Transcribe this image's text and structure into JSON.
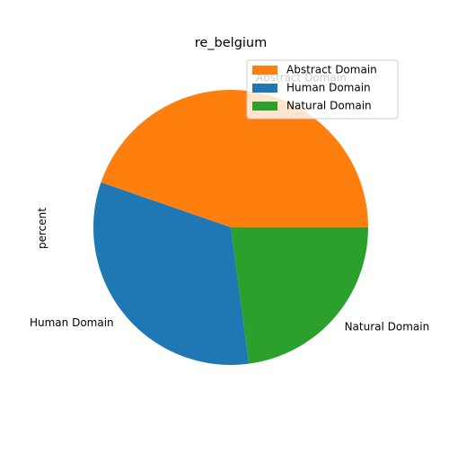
{
  "chart_data": {
    "type": "pie",
    "title": "re_belgium",
    "ylabel": "percent",
    "categories": [
      "Abstract Domain",
      "Human Domain",
      "Natural Domain"
    ],
    "values": [
      44.7,
      32.4,
      22.9
    ],
    "colors": [
      "#ff7f0e",
      "#1f77b4",
      "#2ca02c"
    ],
    "legend_order": [
      "Abstract Domain",
      "Human Domain",
      "Natural Domain"
    ],
    "legend_position": "upper-right",
    "start_angle_degrees": 0,
    "direction": "counterclockwise"
  }
}
